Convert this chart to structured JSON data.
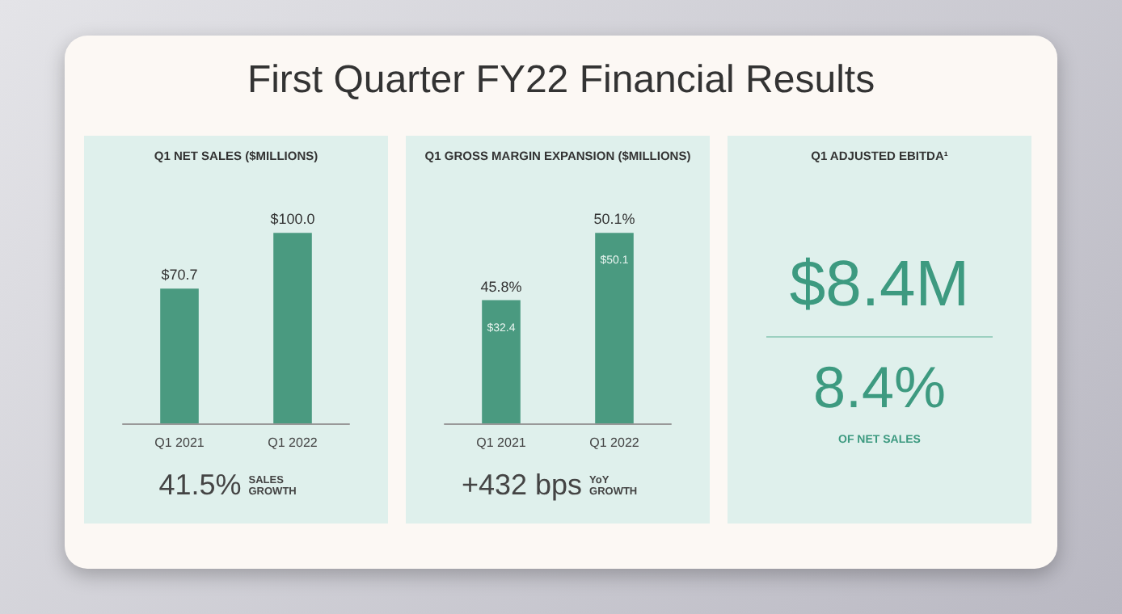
{
  "chart_data": [
    {
      "type": "bar",
      "title": "First Quarter FY22 Financial Results",
      "subtitle": "Q1 NET SALES ($MILLIONS)",
      "categories": [
        "Q1 2021",
        "Q1 2022"
      ],
      "values": [
        70.7,
        100.0
      ],
      "value_labels": [
        "$70.7",
        "$100.0"
      ],
      "color": "#4a9a80",
      "annotations": [
        "41.5%",
        "SALES GROWTH"
      ]
    },
    {
      "type": "bar",
      "title": "Q1 GROSS MARGIN EXPANSION ($MILLIONS)",
      "categories": [
        "Q1 2021",
        "Q1 2022"
      ],
      "values": [
        32.4,
        50.1
      ],
      "value_labels": [
        "$32.4",
        "$50.1"
      ],
      "color": "#4a9a80",
      "annotations": [
        {
          "text": "45.8%",
          "x": "Q1 2021",
          "y": 32.4
        },
        {
          "text": "50.1%",
          "x": "Q1 2022",
          "y": 50.1
        },
        "+432 bps",
        "YoY GROWTH"
      ]
    },
    {
      "type": "other",
      "title": "Q1 ADJUSTED EBITDA¹",
      "annotations": [
        "$8.4M",
        "8.4%",
        "OF NET SALES"
      ]
    }
  ]
}
